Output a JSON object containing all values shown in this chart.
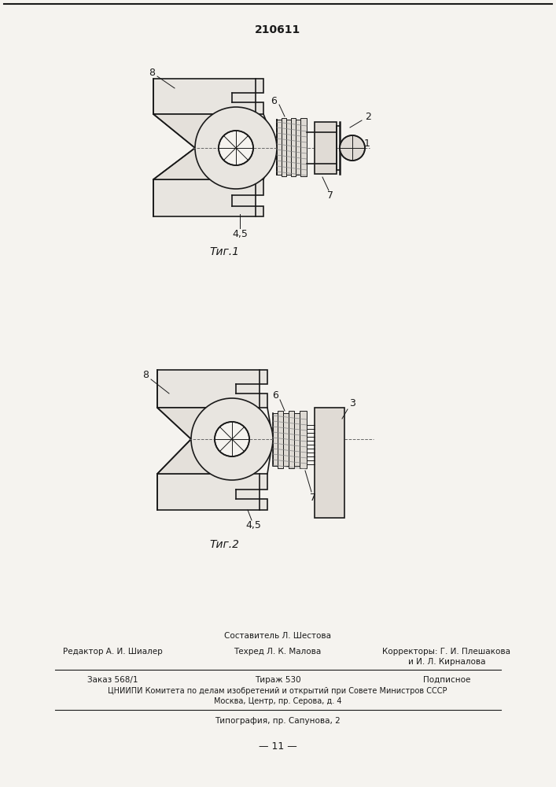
{
  "patent_number": "210611",
  "background_color": "#f5f3ef",
  "line_color": "#1a1a1a",
  "fig_width": 7.07,
  "fig_height": 10.0,
  "fig1_label": "Τиг.1",
  "fig2_label": "Τиг.2",
  "footer_line0_center": "Составитель Л. Шестова",
  "footer_line1_left": "Редактор А. И. Шиалер",
  "footer_line1_center": "Техред Л. К. Малова",
  "footer_line1_right": "Корректоры: Г. И. Плешакова",
  "footer_line1_right2": "и И. Л. Кирналова",
  "footer_line2_left": "Заказ 568/1",
  "footer_line2_center": "Тираж 530",
  "footer_line2_right": "Подписное",
  "footer_line3": "ЦНИИПИ Комитета по делам изобретений и открытий при Совете Министров СССР",
  "footer_line4": "Москва, Центр, пр. Серова, д. 4",
  "footer_line5": "Типография, пр. Сапунова, 2",
  "page_number": "— 11 —"
}
